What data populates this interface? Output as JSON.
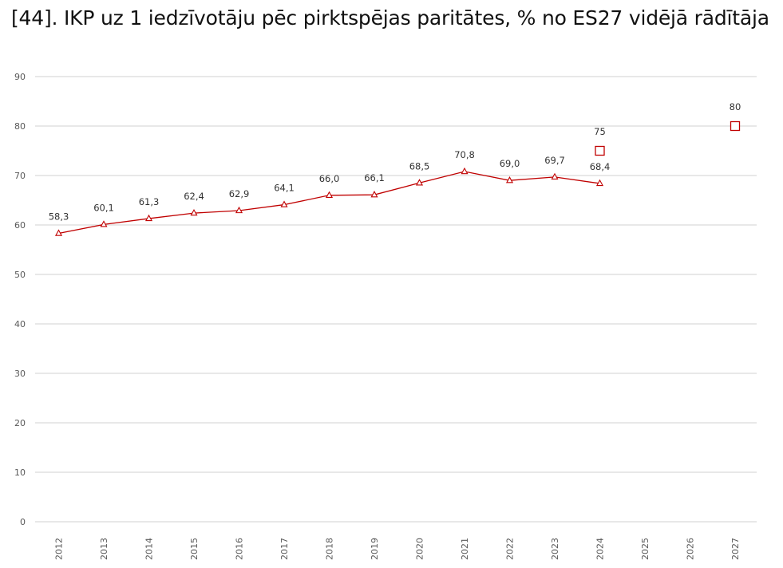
{
  "title": "[44]. IKP uz 1 iedzīvotāju pēc pirktspējas paritātes, % no ES27 vidējā rādītāja",
  "chart_data": {
    "type": "line",
    "title": "[44]. IKP uz 1 iedzīvotāju pēc pirktspējas paritātes, % no ES27 vidējā rādītāja",
    "categories": [
      "2012",
      "2013",
      "2014",
      "2015",
      "2016",
      "2017",
      "2018",
      "2019",
      "2020",
      "2021",
      "2022",
      "2023",
      "2024",
      "2025",
      "2026",
      "2027"
    ],
    "ylim": [
      0,
      90
    ],
    "yticks": [
      0,
      10,
      20,
      30,
      40,
      50,
      60,
      70,
      80,
      90
    ],
    "grid": true,
    "series": [
      {
        "name": "actual",
        "marker": "triangle",
        "line": true,
        "color": "#c00000",
        "values": [
          58.3,
          60.1,
          61.3,
          62.4,
          62.9,
          64.1,
          66.0,
          66.1,
          68.5,
          70.8,
          69.0,
          69.7,
          68.4,
          null,
          null,
          null
        ],
        "labels": [
          "58,3",
          "60,1",
          "61,3",
          "62,4",
          "62,9",
          "64,1",
          "66,0",
          "66,1",
          "68,5",
          "70,8",
          "69,0",
          "69,7",
          "68,4",
          "",
          "",
          ""
        ]
      },
      {
        "name": "target",
        "marker": "square",
        "line": false,
        "color": "#c00000",
        "values": [
          null,
          null,
          null,
          null,
          null,
          null,
          null,
          null,
          null,
          null,
          null,
          null,
          75,
          null,
          null,
          80
        ],
        "labels": [
          "",
          "",
          "",
          "",
          "",
          "",
          "",
          "",
          "",
          "",
          "",
          "",
          "75",
          "",
          "",
          "80"
        ]
      }
    ]
  }
}
